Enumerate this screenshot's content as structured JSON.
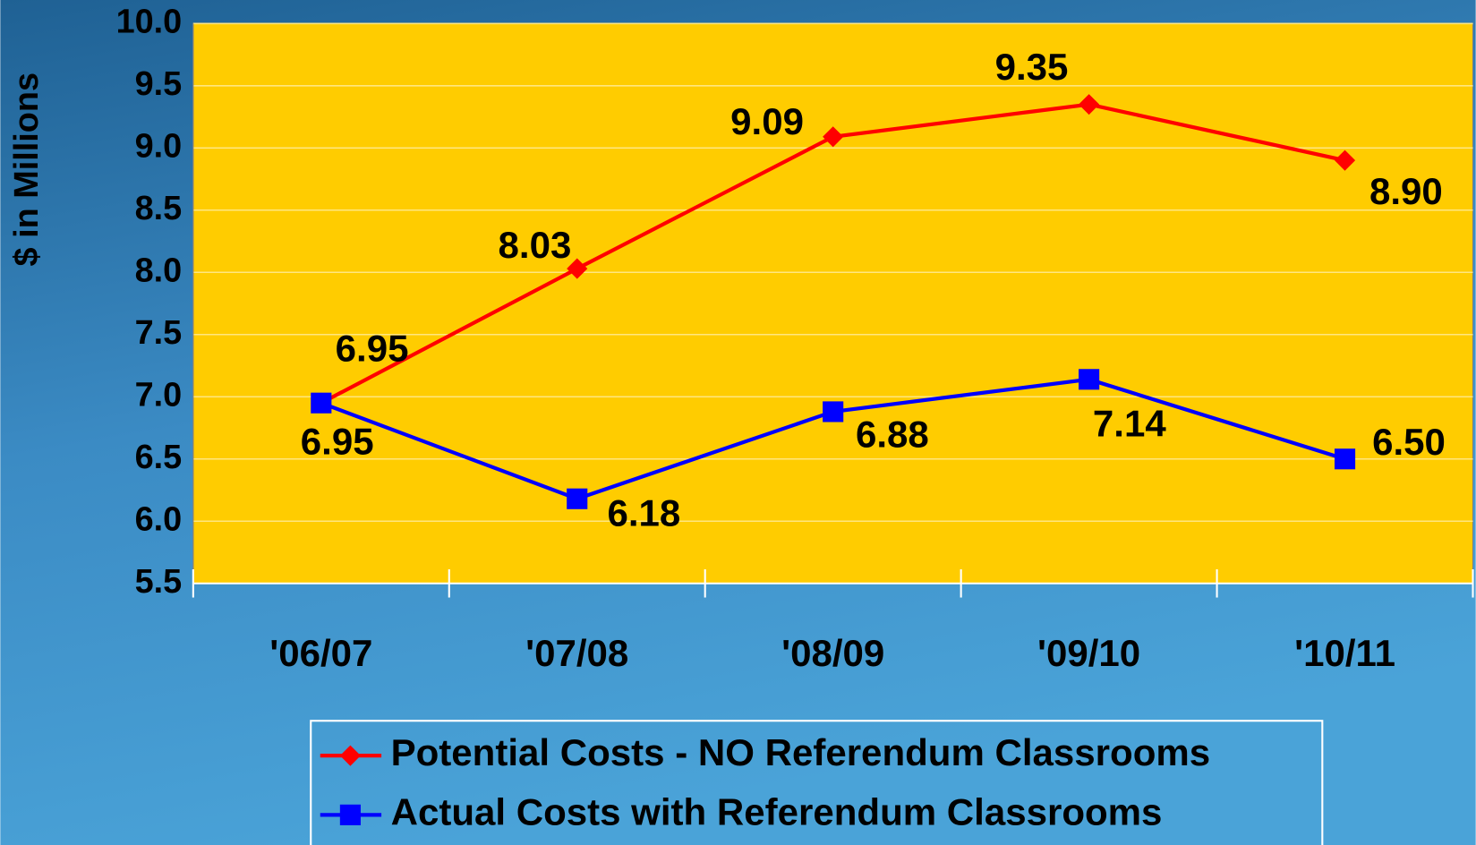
{
  "chart_data": {
    "type": "line",
    "y_label": "$ in Millions",
    "categories": [
      "'06/07",
      "'07/08",
      "'08/09",
      "'09/10",
      "'10/11"
    ],
    "series": [
      {
        "name": "Potential Costs - NO Referendum Classrooms",
        "color": "#ff0000",
        "marker": "diamond",
        "values": [
          6.95,
          8.03,
          9.09,
          9.35,
          8.9
        ],
        "value_labels": [
          "6.95",
          "8.03",
          "9.09",
          "9.35",
          "8.90"
        ]
      },
      {
        "name": "Actual Costs with Referendum Classrooms",
        "color": "#0000ff",
        "marker": "square",
        "values": [
          6.95,
          6.18,
          6.88,
          7.14,
          6.5
        ],
        "value_labels": [
          "6.95",
          "6.18",
          "6.88",
          "7.14",
          "6.50"
        ]
      }
    ],
    "ylim": [
      5.5,
      10
    ],
    "yticks": [
      5.5,
      {
        "value": 6,
        "label": "6.0"
      },
      6.5,
      {
        "value": 7,
        "label": "7.0"
      },
      7.5,
      {
        "value": 8,
        "label": "8.0"
      },
      8.5,
      {
        "value": 9,
        "label": "9.0"
      },
      9.5,
      {
        "value": 10,
        "label": "10.0"
      }
    ],
    "grid": true,
    "plot_background": "#ffcc00"
  }
}
